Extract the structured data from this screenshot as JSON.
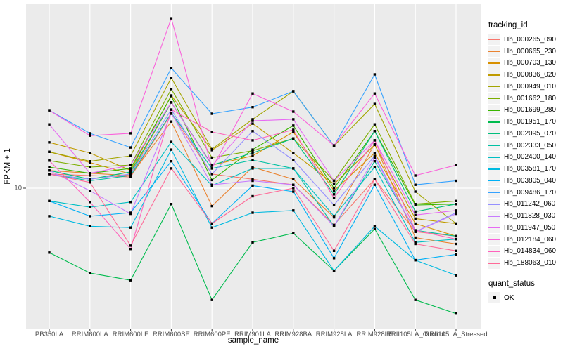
{
  "colors": {
    "panel_bg": "#EBEBEB",
    "gridline": "#FFFFFF",
    "axis_tick_text": "#4D4D4D",
    "axis_tick_mark": "#333333",
    "point_marker": "#000000",
    "legend_key_bg": "#F2F2F2"
  },
  "legend": {
    "tracking_title": "tracking_id",
    "quant_title": "quant_status",
    "quant_items": [
      {
        "label": "OK",
        "shape": "filled-square"
      }
    ]
  },
  "chart_data": {
    "type": "line",
    "title": "",
    "xlabel": "sample_name",
    "ylabel": "FPKM + 1",
    "y_scale": "log10",
    "ylim": [
      1.93,
      86.3
    ],
    "y_major_ticks": [
      10
    ],
    "y_tick_labels": [
      "10"
    ],
    "grid": "major-on",
    "legend_position": "right",
    "point_shape": "filled-square",
    "categories": [
      "PB350LA",
      "RRIM600LA",
      "RRIM600LE",
      "RRIM600SE",
      "RRIM600PE",
      "RRIM901LA",
      "RRIM928BA",
      "RRIM928LA",
      "RRIM928LE",
      "RRII105LA_Control",
      "RRII105LA_Stressed"
    ],
    "series": [
      {
        "name": "Hb_000265_090",
        "color": "#F8766D",
        "values": [
          11.8,
          11.6,
          11.4,
          23.9,
          11.8,
          11.1,
          10.4,
          6.5,
          11.1,
          6.0,
          5.7
        ]
      },
      {
        "name": "Hb_000665_230",
        "color": "#EA8331",
        "values": [
          12.3,
          11.9,
          11.6,
          21.8,
          8.1,
          12.8,
          11.1,
          7.1,
          16.8,
          5.6,
          5.2
        ]
      },
      {
        "name": "Hb_000703_130",
        "color": "#D89000",
        "values": [
          15.3,
          13.5,
          11.8,
          27.3,
          13.1,
          14.6,
          19.3,
          9.7,
          15.1,
          6.6,
          5.7
        ]
      },
      {
        "name": "Hb_000836_020",
        "color": "#C09B00",
        "values": [
          17.1,
          15.1,
          12.3,
          29.6,
          15.6,
          21.3,
          15.1,
          10.5,
          16.6,
          7.0,
          6.6
        ]
      },
      {
        "name": "Hb_000949_010",
        "color": "#A3A500",
        "values": [
          15.3,
          13.7,
          14.6,
          36.4,
          15.8,
          22.4,
          31.1,
          16.4,
          26.8,
          9.6,
          6.6
        ]
      },
      {
        "name": "Hb_001662_180",
        "color": "#7CAE00",
        "values": [
          13.8,
          12.8,
          13.1,
          31.9,
          14.3,
          15.5,
          17.9,
          10.9,
          21.1,
          8.3,
          8.6
        ]
      },
      {
        "name": "Hb_001699_280",
        "color": "#39B600",
        "values": [
          12.8,
          11.9,
          12.6,
          29.4,
          11.0,
          15.7,
          20.8,
          10.0,
          19.5,
          8.2,
          8.3
        ]
      },
      {
        "name": "Hb_001951_170",
        "color": "#00BB4E",
        "values": [
          4.7,
          3.7,
          3.4,
          8.3,
          2.7,
          5.3,
          5.9,
          3.8,
          6.2,
          2.7,
          2.3
        ]
      },
      {
        "name": "Hb_002095_070",
        "color": "#00BF7D",
        "values": [
          12.3,
          11.1,
          12.1,
          27.3,
          13.1,
          15.1,
          17.9,
          9.3,
          19.5,
          7.6,
          8.3
        ]
      },
      {
        "name": "Hb_002333_050",
        "color": "#00C1A3",
        "values": [
          11.8,
          10.9,
          11.6,
          24.1,
          12.6,
          13.9,
          12.6,
          6.4,
          13.7,
          6.1,
          5.7
        ]
      },
      {
        "name": "Hb_002400_140",
        "color": "#00BFC4",
        "values": [
          8.6,
          8.0,
          8.5,
          17.2,
          10.3,
          12.6,
          12.6,
          7.2,
          12.8,
          5.3,
          5.5
        ]
      },
      {
        "name": "Hb_003581_170",
        "color": "#00BAE0",
        "values": [
          7.2,
          6.4,
          6.3,
          15.7,
          6.3,
          7.5,
          7.7,
          3.8,
          6.4,
          4.3,
          3.6
        ]
      },
      {
        "name": "Hb_003805_040",
        "color": "#00B0F6",
        "values": [
          8.6,
          7.2,
          7.5,
          13.7,
          6.6,
          10.3,
          9.6,
          4.4,
          10.4,
          4.3,
          4.6
        ]
      },
      {
        "name": "Hb_009486_170",
        "color": "#35A2FF",
        "values": [
          24.9,
          19.0,
          16.1,
          40.8,
          23.9,
          25.8,
          31.1,
          16.4,
          37.9,
          10.4,
          10.9
        ]
      },
      {
        "name": "Hb_011242_060",
        "color": "#9590FF",
        "values": [
          11.8,
          11.1,
          11.8,
          25.1,
          11.8,
          19.5,
          13.9,
          8.2,
          14.6,
          6.0,
          7.5
        ]
      },
      {
        "name": "Hb_011828_030",
        "color": "#C77CFF",
        "values": [
          12.3,
          9.7,
          7.4,
          24.1,
          10.4,
          10.9,
          10.4,
          6.4,
          14.3,
          6.0,
          7.4
        ]
      },
      {
        "name": "Hb_011947_050",
        "color": "#E76BF3",
        "values": [
          21.1,
          11.9,
          13.1,
          27.3,
          13.0,
          22.0,
          22.4,
          10.9,
          17.5,
          7.3,
          7.7
        ]
      },
      {
        "name": "Hb_012184_060",
        "color": "#FA62DB",
        "values": [
          24.9,
          18.5,
          19.0,
          73.1,
          12.6,
          30.3,
          24.5,
          16.5,
          30.3,
          11.6,
          13.1
        ]
      },
      {
        "name": "Hb_014834_060",
        "color": "#FF62BC",
        "values": [
          13.8,
          8.5,
          4.9,
          25.1,
          19.3,
          17.5,
          19.8,
          8.9,
          17.5,
          6.1,
          5.5
        ]
      },
      {
        "name": "Hb_188063_010",
        "color": "#FF6A98",
        "values": [
          11.8,
          10.7,
          5.1,
          12.6,
          6.6,
          9.1,
          10.0,
          4.8,
          11.1,
          5.2,
          4.8
        ]
      }
    ]
  }
}
